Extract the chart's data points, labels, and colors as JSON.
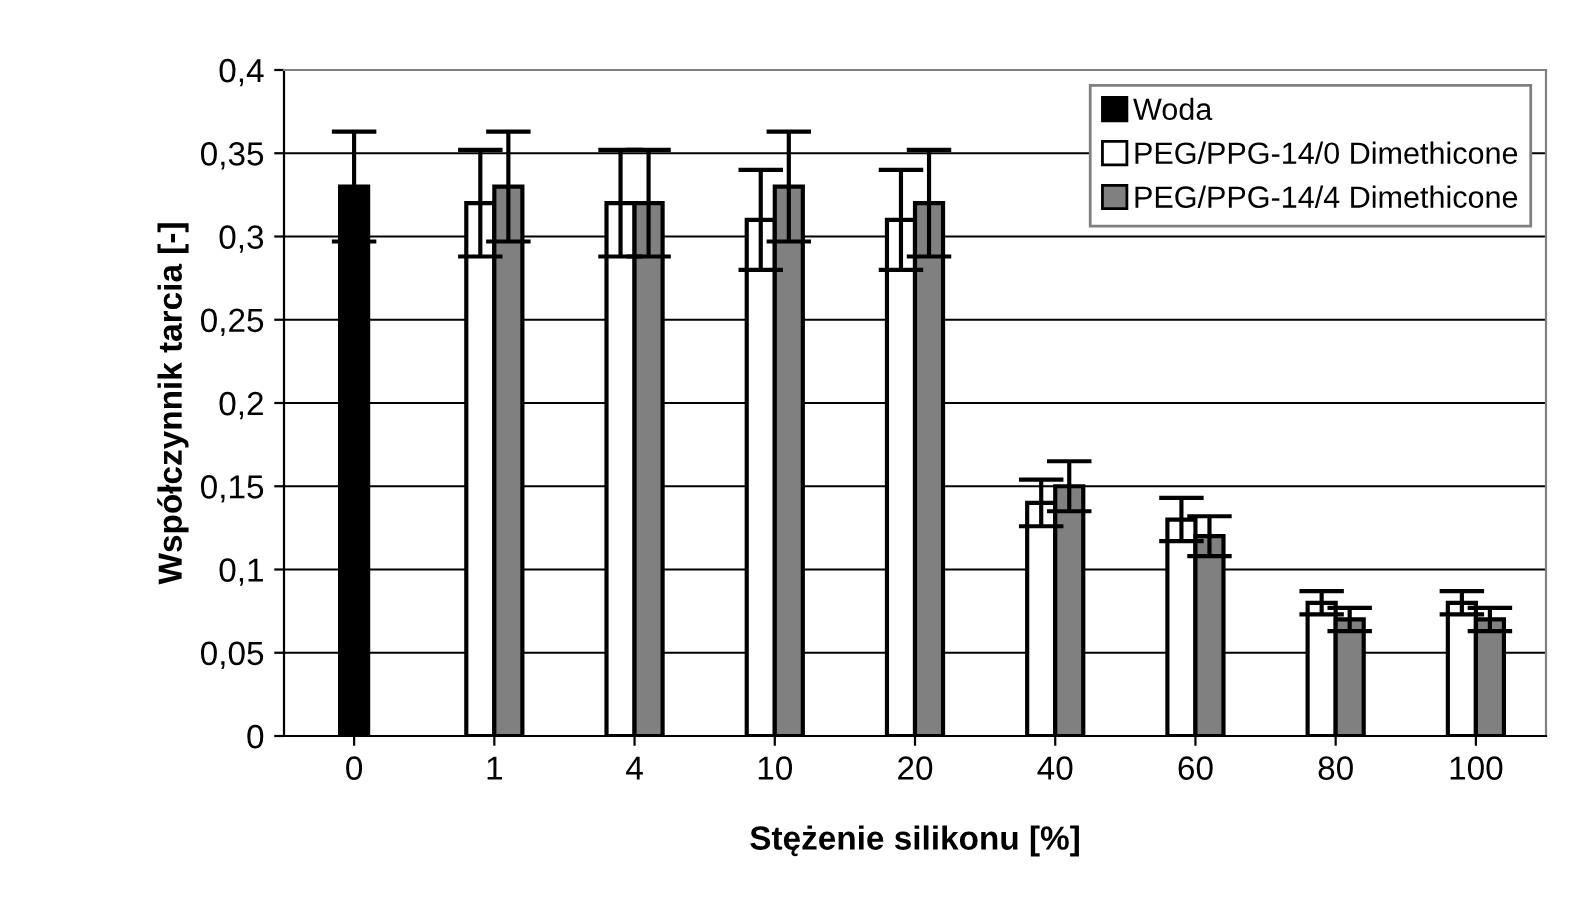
{
  "chart_data": {
    "type": "bar",
    "xlabel": "Stężenie silikonu [%]",
    "ylabel": "Współczynnik tarcia [-]",
    "categories": [
      "0",
      "1",
      "4",
      "10",
      "20",
      "40",
      "60",
      "80",
      "100"
    ],
    "series": [
      {
        "name": "Woda",
        "color": "#000000",
        "values": [
          0.33,
          null,
          null,
          null,
          null,
          null,
          null,
          null,
          null
        ],
        "errors": [
          0.033,
          null,
          null,
          null,
          null,
          null,
          null,
          null,
          null
        ]
      },
      {
        "name": "PEG/PPG-14/0 Dimethicone",
        "color": "#ffffff",
        "values": [
          null,
          0.32,
          0.32,
          0.31,
          0.31,
          0.14,
          0.13,
          0.08,
          0.08
        ],
        "errors": [
          null,
          0.032,
          0.032,
          0.03,
          0.03,
          0.014,
          0.013,
          0.007,
          0.007
        ]
      },
      {
        "name": "PEG/PPG-14/4 Dimethicone",
        "color": "#808080",
        "values": [
          null,
          0.33,
          0.32,
          0.33,
          0.32,
          0.15,
          0.12,
          0.07,
          0.07
        ],
        "errors": [
          null,
          0.033,
          0.032,
          0.033,
          0.032,
          0.015,
          0.012,
          0.007,
          0.007
        ]
      }
    ],
    "ylim": [
      0,
      0.4
    ],
    "yticks": [
      {
        "value": 0,
        "label": "0"
      },
      {
        "value": 0.05,
        "label": "0,05"
      },
      {
        "value": 0.1,
        "label": "0,1"
      },
      {
        "value": 0.15,
        "label": "0,15"
      },
      {
        "value": 0.2,
        "label": "0,2"
      },
      {
        "value": 0.25,
        "label": "0,25"
      },
      {
        "value": 0.3,
        "label": "0,3"
      },
      {
        "value": 0.35,
        "label": "0,35"
      },
      {
        "value": 0.4,
        "label": "0,4"
      }
    ],
    "grid": "y",
    "legend": "top right"
  }
}
